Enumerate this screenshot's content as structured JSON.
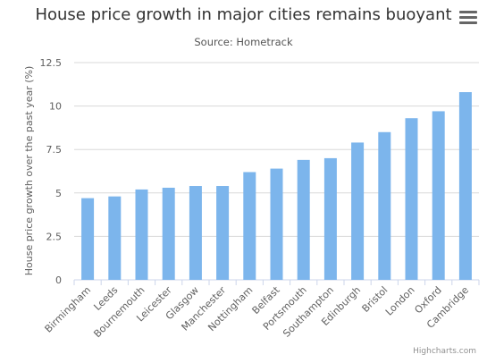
{
  "chart_data": {
    "type": "bar",
    "title": "House price growth in major cities remains buoyant",
    "subtitle": "Source: Hometrack",
    "ylabel": "House price growth over the past year (%)",
    "xlabel": "",
    "ylim": [
      0,
      12.5
    ],
    "yticks": [
      0,
      2.5,
      5,
      7.5,
      10,
      12.5
    ],
    "ytick_labels": [
      "0",
      "2.5",
      "5",
      "7.5",
      "10",
      "12.5"
    ],
    "grid": true,
    "legend": "none",
    "bar_color": "#7cb5ec",
    "categories": [
      "Birmingham",
      "Leeds",
      "Bournemouth",
      "Leicester",
      "Glasgow",
      "Manchester",
      "Nottingham",
      "Belfast",
      "Portsmouth",
      "Southampton",
      "Edinburgh",
      "Bristol",
      "London",
      "Oxford",
      "Cambridge"
    ],
    "values": [
      4.7,
      4.8,
      5.2,
      5.3,
      5.4,
      5.4,
      6.2,
      6.4,
      6.9,
      7.0,
      7.9,
      8.5,
      9.3,
      9.7,
      10.8
    ]
  },
  "credits": "Highcharts.com",
  "menu_icon": "hamburger-menu-icon"
}
